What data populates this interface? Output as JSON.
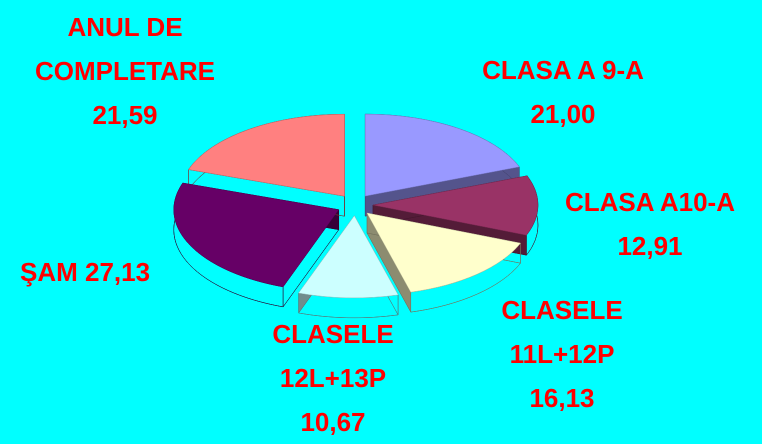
{
  "chart_data": {
    "type": "pie",
    "categories": [
      "CLASA A 9-A",
      "CLASA A10-A",
      "CLASELE 11L+12P",
      "CLASELE 12L+13P",
      "ŞAM",
      "ANUL DE COMPLETARE"
    ],
    "values": [
      21.0,
      12.91,
      16.13,
      10.67,
      27.13,
      21.59
    ],
    "value_labels": [
      "21,00",
      "12,91",
      "16,13",
      "10,67",
      "27,13",
      "21,59"
    ],
    "colors": [
      "#9999ff",
      "#993366",
      "#ffffcc",
      "#ccffff",
      "#660066",
      "#ff8080"
    ]
  }
}
